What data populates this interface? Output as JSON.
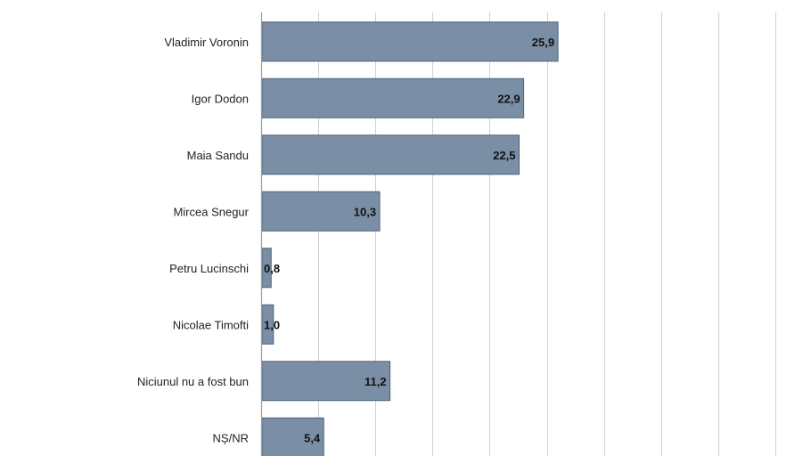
{
  "chart_data": {
    "type": "bar",
    "orientation": "horizontal",
    "categories": [
      "Vladimir Voronin",
      "Igor Dodon",
      "Maia Sandu",
      "Mircea Snegur",
      "Petru Lucinschi",
      "Nicolae Timofti",
      "Niciunul nu a fost bun",
      "NȘ/NR"
    ],
    "values": [
      25.9,
      22.9,
      22.5,
      10.3,
      0.8,
      1.0,
      11.2,
      5.4
    ],
    "value_labels": [
      "25,9",
      "22,9",
      "22,5",
      "10,3",
      "0,8",
      "1,0",
      "11,2",
      "5,4"
    ],
    "xlim": [
      0,
      45
    ],
    "x_gridlines": [
      0,
      5,
      10,
      15,
      20,
      25,
      30,
      35,
      40,
      45
    ],
    "grid": true,
    "bar_color": "#7a8fa6",
    "title": "",
    "xlabel": "",
    "ylabel": ""
  }
}
